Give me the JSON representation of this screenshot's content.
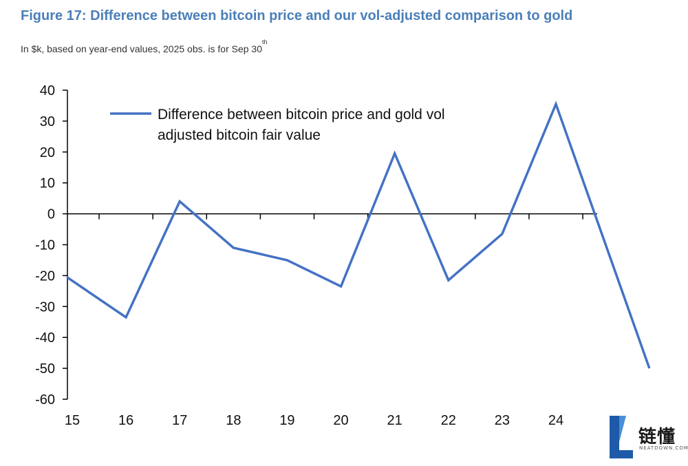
{
  "figure": {
    "title": "Figure 17: Difference between bitcoin price and our vol-adjusted comparison to gold",
    "subtitle": "In $k, based on year-end values, 2025 obs. is for Sep 30",
    "subtitle_sup": "th"
  },
  "logo": {
    "text_cn": "链懂",
    "text_en": "NEATDOWN.COM"
  },
  "chart_data": {
    "type": "line",
    "x": [
      2014.9,
      2016,
      2017,
      2018,
      2019,
      2020,
      2021,
      2022,
      2023,
      2024,
      2025.74
    ],
    "categories": [
      "15",
      "16",
      "17",
      "18",
      "19",
      "20",
      "21",
      "22",
      "23",
      "24"
    ],
    "series": [
      {
        "name": "Difference between bitcoin price and gold vol adjusted bitcoin fair value",
        "values": [
          -20.5,
          -33.5,
          4,
          -11,
          -15,
          -23.5,
          19.5,
          -21.5,
          -6.5,
          35.5,
          -50
        ],
        "color": "#4472c4"
      }
    ],
    "yticks": [
      40,
      30,
      20,
      10,
      0,
      -10,
      -20,
      -30,
      -40,
      -50,
      -60
    ],
    "ylim": [
      -60,
      40
    ],
    "legend_lines": [
      "Difference between bitcoin price and gold vol",
      "adjusted bitcoin fair value"
    ],
    "legend_position": "top-left",
    "grid": false
  }
}
